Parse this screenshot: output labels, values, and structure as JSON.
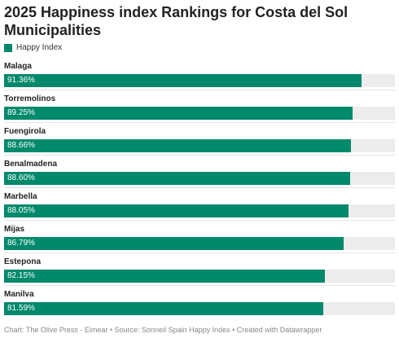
{
  "chart_data": {
    "type": "bar",
    "orientation": "horizontal",
    "title": "2025 Happiness index Rankings for Costa del Sol Municipalities",
    "categories": [
      "Malaga",
      "Torremolinos",
      "Fuengirola",
      "Benalmadena",
      "Marbella",
      "Mijas",
      "Estepona",
      "Manilva"
    ],
    "series": [
      {
        "name": "Happy Index",
        "values": [
          91.36,
          89.25,
          88.66,
          88.6,
          88.05,
          86.79,
          82.15,
          81.59
        ],
        "labels": [
          "91.36%",
          "89.25%",
          "88.66%",
          "88.60%",
          "88.05%",
          "86.79%",
          "82.15%",
          "81.59%"
        ]
      }
    ],
    "xlim": [
      0,
      100
    ],
    "grid": false,
    "legend_placement": "top-left",
    "bar_color": "#00896b",
    "track_color": "#ececec"
  },
  "footer": "Chart: The Olive Press - Eimear • Source: Sonneil Spain Happy Index • Created with Datawrapper"
}
